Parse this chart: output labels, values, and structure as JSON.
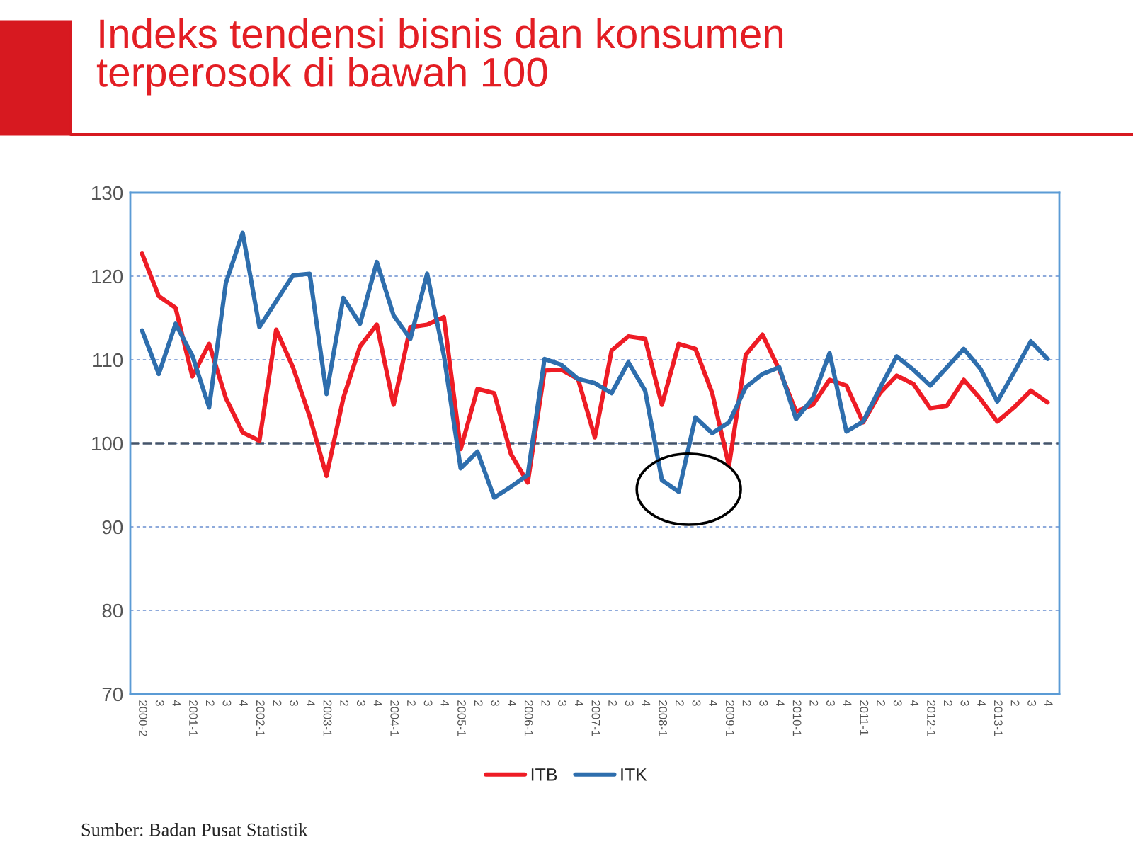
{
  "chart_data": {
    "type": "line",
    "title": "Indeks tendensi bisnis dan konsumen\nterperosok di bawah 100",
    "categories": [
      "2000-2",
      "3",
      "4",
      "2001-1",
      "2",
      "3",
      "4",
      "2002-1",
      "2",
      "3",
      "4",
      "2003-1",
      "2",
      "3",
      "4",
      "2004-1",
      "2",
      "3",
      "4",
      "2005-1",
      "2",
      "3",
      "4",
      "2006-1",
      "2",
      "3",
      "4",
      "2007-1",
      "2",
      "3",
      "4",
      "2008-1",
      "2",
      "3",
      "4",
      "2009-1",
      "2",
      "3",
      "4",
      "2010-1",
      "2",
      "3",
      "4",
      "2011-1",
      "2",
      "3",
      "4",
      "2012-1",
      "2",
      "3",
      "4",
      "2013-1",
      "2",
      "3",
      "4"
    ],
    "series": [
      {
        "name": "ITB",
        "color": "#ee1c25",
        "values": [
          122.7,
          117.6,
          116.2,
          108.0,
          111.9,
          105.4,
          101.3,
          100.3,
          113.6,
          109.1,
          103.2,
          96.1,
          105.4,
          111.6,
          114.2,
          104.6,
          113.9,
          114.2,
          115.1,
          99.3,
          106.5,
          106.0,
          98.7,
          95.3,
          108.7,
          108.8,
          107.7,
          100.7,
          111.1,
          112.8,
          112.5,
          104.6,
          111.9,
          111.3,
          106.0,
          97.3,
          110.6,
          113.0,
          108.8,
          103.8,
          104.6,
          107.6,
          106.9,
          102.5,
          106.0,
          108.1,
          107.1,
          104.2,
          104.5,
          107.6,
          105.3,
          102.6,
          104.3,
          106.3,
          104.9
        ]
      },
      {
        "name": "ITK",
        "color": "#2e6ead",
        "values": [
          113.5,
          108.3,
          114.3,
          110.5,
          104.3,
          119.2,
          125.2,
          113.9,
          117.0,
          120.1,
          120.3,
          105.9,
          117.4,
          114.3,
          121.7,
          115.3,
          112.5,
          120.3,
          110.5,
          97.0,
          99.0,
          93.5,
          94.8,
          96.2,
          110.1,
          109.4,
          107.7,
          107.2,
          106.0,
          109.7,
          106.3,
          95.6,
          94.2,
          103.1,
          101.2,
          102.5,
          106.7,
          108.3,
          109.1,
          102.9,
          105.4,
          110.8,
          101.4,
          102.6,
          106.6,
          110.4,
          108.8,
          106.9,
          109.1,
          111.3,
          108.9,
          105.0,
          108.5,
          112.2,
          110.1
        ]
      }
    ],
    "ylim": [
      70,
      130
    ],
    "yticks": [
      70,
      80,
      90,
      100,
      110,
      120,
      130
    ],
    "grid": "y",
    "legend": "bottom",
    "marker": "none",
    "line_style": "solid",
    "ref_lines": [
      {
        "axis": "y",
        "value": 100,
        "color": "#44546a",
        "line_style": "dashed"
      }
    ],
    "annotations": [
      "Sumber: Badan Pusat Statistik"
    ]
  }
}
